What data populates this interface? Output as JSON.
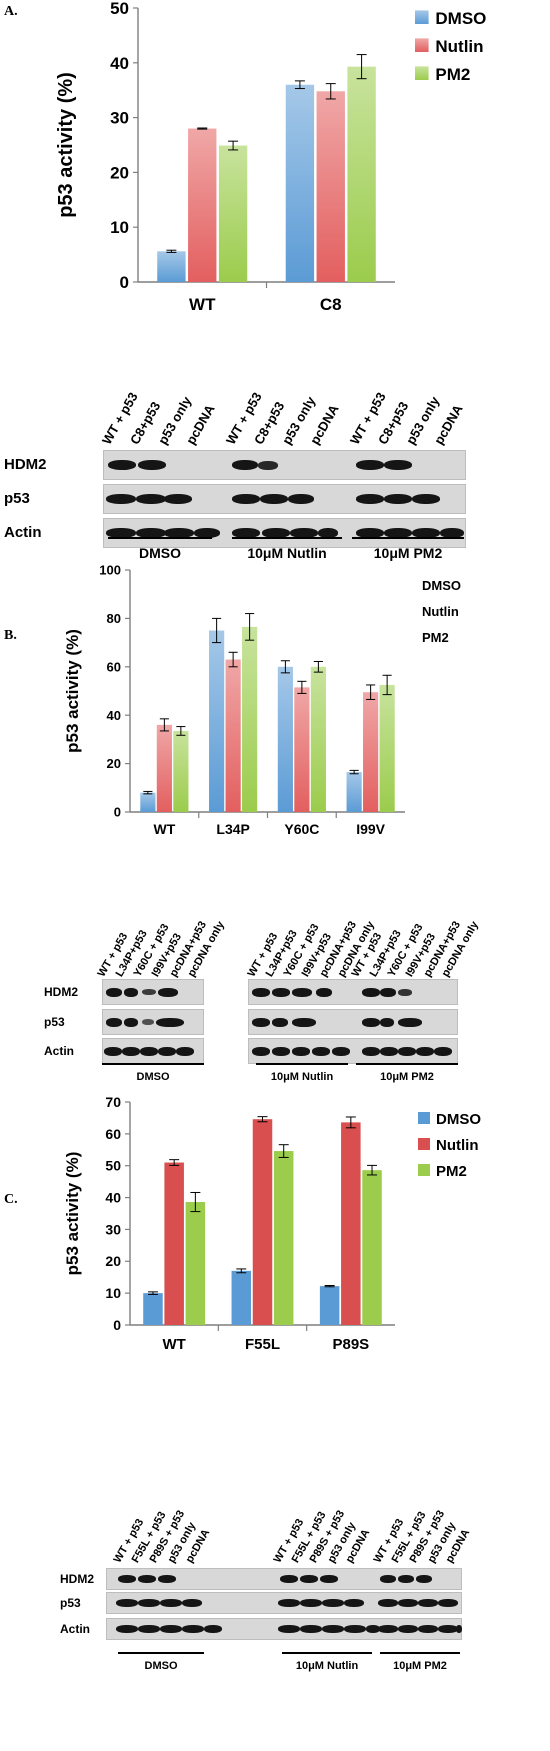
{
  "panels": [
    {
      "letter": "A.",
      "chart_data": {
        "type": "bar",
        "categories": [
          "WT",
          "C8"
        ],
        "series": [
          {
            "name": "DMSO",
            "values": [
              5.6,
              36.0
            ],
            "errors": [
              0.2,
              0.7
            ],
            "color": "#5b9bd5"
          },
          {
            "name": "Nutlin",
            "values": [
              28.0,
              34.8
            ],
            "errors": [
              0.1,
              1.4
            ],
            "color": "#e35f5f"
          },
          {
            "name": "PM2",
            "values": [
              24.9,
              39.3
            ],
            "errors": [
              0.8,
              2.2
            ],
            "color": "#9bcc4c"
          }
        ],
        "ylabel": "p53 activity (%)",
        "ylim": [
          0,
          50
        ],
        "yticks": [
          0,
          10,
          20,
          30,
          40,
          50
        ],
        "grid": false,
        "legend": "top-right"
      },
      "blot": {
        "lanes": [
          "WT + p53",
          "C8+p53",
          "p53 only",
          "pcDNA",
          "WT + p53",
          "C8+p53",
          "p53 only",
          "pcDNA",
          "WT + p53",
          "C8+p53",
          "p53 only",
          "pcDNA"
        ],
        "rows": [
          "HDM2",
          "p53",
          "Actin"
        ],
        "groups": [
          "DMSO",
          "10μM Nutlin",
          "10μM PM2"
        ]
      }
    },
    {
      "letter": "B.",
      "chart_data": {
        "type": "bar",
        "categories": [
          "WT",
          "L34P",
          "Y60C",
          "I99V"
        ],
        "series": [
          {
            "name": "DMSO",
            "values": [
              8,
              75,
              60,
              16.5
            ],
            "errors": [
              0.5,
              5,
              2.5,
              0.7
            ],
            "color": "#5b9bd5"
          },
          {
            "name": "Nutlin",
            "values": [
              36,
              63,
              51.5,
              49.5
            ],
            "errors": [
              2.5,
              3,
              2.5,
              3
            ],
            "color": "#e35f5f"
          },
          {
            "name": "PM2",
            "values": [
              33.5,
              76.5,
              60,
              52.5
            ],
            "errors": [
              1.8,
              5.5,
              2.2,
              4
            ],
            "color": "#9bcc4c"
          }
        ],
        "ylabel": "p53 activity (%)",
        "ylim": [
          0,
          100
        ],
        "yticks": [
          0,
          20,
          40,
          60,
          80,
          100
        ],
        "grid": false,
        "legend": "top-right"
      },
      "blot": {
        "lanes": [
          "WT + p53",
          "L34P+p53",
          "Y60C + p53",
          "I99V+p53",
          "pcDNA+p53",
          "pcDNA only",
          "WT + p53",
          "L34P+p53",
          "Y60C + p53",
          "I99V+p53",
          "pcDNA+p53",
          "pcDNA only",
          "WT + p53",
          "L34P+p53",
          "Y60C + p53",
          "I99V+p53",
          "pcDNA+p53",
          "pcDNA only"
        ],
        "rows": [
          "HDM2",
          "p53",
          "Actin"
        ],
        "groups": [
          "DMSO",
          "10μM Nutlin",
          "10μM PM2"
        ]
      }
    },
    {
      "letter": "C.",
      "chart_data": {
        "type": "bar",
        "categories": [
          "WT",
          "F55L",
          "P89S"
        ],
        "series": [
          {
            "name": "DMSO",
            "values": [
              10,
              17,
              12.2
            ],
            "errors": [
              0.4,
              0.6,
              0.2
            ],
            "color": "#5b9bd5"
          },
          {
            "name": "Nutlin",
            "values": [
              51,
              64.6,
              63.6
            ],
            "errors": [
              0.9,
              0.8,
              1.7
            ],
            "color": "#d94e4e"
          },
          {
            "name": "PM2",
            "values": [
              38.6,
              54.6,
              48.6
            ],
            "errors": [
              3,
              2,
              1.5
            ],
            "color": "#9bcc4c"
          }
        ],
        "ylabel": "p53 activity (%)",
        "ylim": [
          0,
          70
        ],
        "yticks": [
          0,
          10,
          20,
          30,
          40,
          50,
          60,
          70
        ],
        "grid": false,
        "legend": "top-right"
      },
      "blot": {
        "lanes": [
          "WT + p53",
          "F55L + p53",
          "P89S + p53",
          "p53 only",
          "pcDNA",
          "WT + p53",
          "F55L + p53",
          "P89S + p53",
          "p53 only",
          "pcDNA",
          "WT + p53",
          "F55L + p53",
          "P89S + p53",
          "p53 only",
          "pcDNA"
        ],
        "rows": [
          "HDM2",
          "p53",
          "Actin"
        ],
        "groups": [
          "DMSO",
          "10μM Nutlin",
          "10μM PM2"
        ]
      }
    }
  ]
}
